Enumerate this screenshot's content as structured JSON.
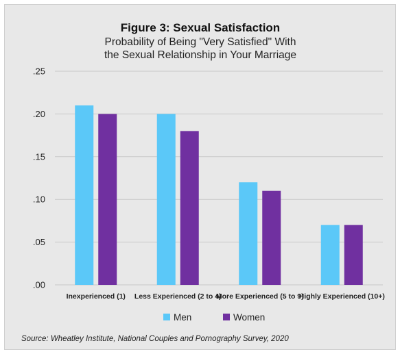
{
  "chart_data": {
    "type": "bar",
    "title": "Figure 3: Sexual Satisfaction",
    "subtitle_lines": [
      "Probability of Being \"Very Satisfied\" With",
      "the Sexual Relationship in Your Marriage"
    ],
    "categories": [
      "Inexperienced (1)",
      "Less Experienced (2 to 4)",
      "More Experienced (5 to 9)",
      "Highly Experienced (10+)"
    ],
    "series": [
      {
        "name": "Men",
        "values": [
          0.21,
          0.2,
          0.12,
          0.07
        ],
        "color": "#5bc8f8"
      },
      {
        "name": "Women",
        "values": [
          0.2,
          0.18,
          0.11,
          0.07
        ],
        "color": "#7030a0"
      }
    ],
    "ylim": [
      0,
      0.25
    ],
    "yticks": [
      0,
      0.05,
      0.1,
      0.15,
      0.2,
      0.25
    ],
    "ytick_labels": [
      ".00",
      ".05",
      ".10",
      ".15",
      ".20",
      ".25"
    ],
    "grid": true,
    "legend_position": "bottom",
    "source": "Source: Wheatley Institute, National Couples and Pornography Survey, 2020"
  },
  "colors": {
    "background": "#e8e8e8",
    "grid": "#c8c8c8"
  }
}
